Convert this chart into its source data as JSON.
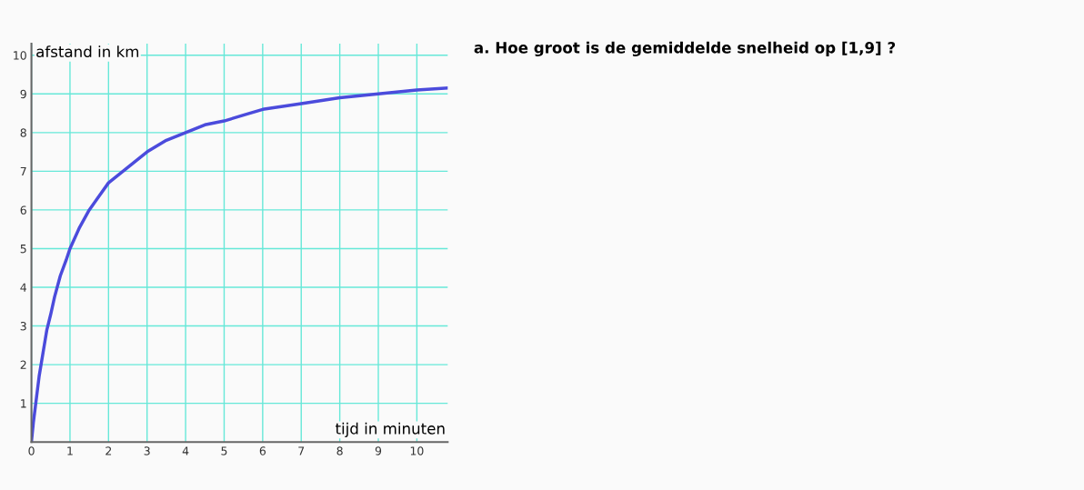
{
  "chart_data": {
    "type": "line",
    "xlabel": "tijd in minuten",
    "ylabel": "afstand in km",
    "annotations": [
      "a. Hoe groot is de gemiddelde snelheid op [1,9] ?"
    ],
    "x": [
      0,
      0.05,
      0.1,
      0.2,
      0.3,
      0.4,
      0.5,
      0.6,
      0.75,
      0.9,
      1,
      1.25,
      1.5,
      1.75,
      2,
      2.5,
      3,
      3.5,
      4,
      4.5,
      5,
      5.5,
      6,
      7,
      8,
      9,
      10,
      10.8
    ],
    "series": [
      {
        "color": "#4b4bdc",
        "values": [
          0,
          0.5,
          0.9,
          1.7,
          2.3,
          2.9,
          3.3,
          3.75,
          4.3,
          4.7,
          5,
          5.55,
          6,
          6.35,
          6.7,
          7.1,
          7.5,
          7.8,
          8,
          8.2,
          8.3,
          8.45,
          8.6,
          8.75,
          8.9,
          9,
          9.1,
          9.15
        ]
      }
    ],
    "xlim": [
      0,
      10.8
    ],
    "ylim": [
      0,
      10.3
    ],
    "xticks": [
      0,
      1,
      2,
      3,
      4,
      5,
      6,
      7,
      8,
      9,
      10
    ],
    "yticks": [
      1,
      2,
      3,
      4,
      5,
      6,
      7,
      8,
      9,
      10
    ],
    "grid": true,
    "marker": "none",
    "line_style": "solid"
  }
}
